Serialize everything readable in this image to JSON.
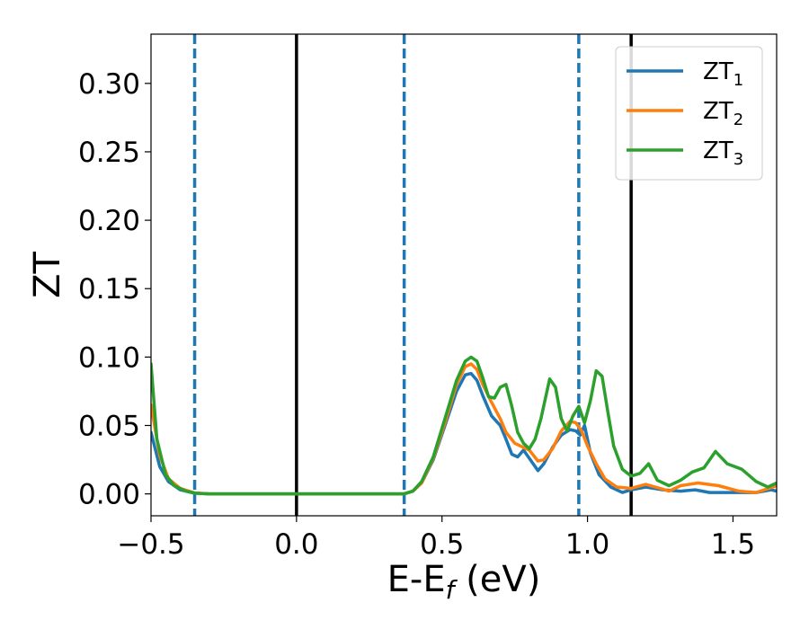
{
  "chart_data": {
    "type": "line",
    "title": "",
    "xlabel": "E-E",
    "xlabel_sub": "f",
    "xlabel_unit": " (eV)",
    "ylabel": "ZT",
    "xlim": [
      -0.5,
      1.65
    ],
    "ylim": [
      -0.016,
      0.336
    ],
    "xticks": [
      -0.5,
      0.0,
      0.5,
      1.0,
      1.5
    ],
    "xtick_labels": [
      "−0.5",
      "0.0",
      "0.5",
      "1.0",
      "1.5"
    ],
    "yticks": [
      0.0,
      0.05,
      0.1,
      0.15,
      0.2,
      0.25,
      0.3
    ],
    "ytick_labels": [
      "0.00",
      "0.05",
      "0.10",
      "0.15",
      "0.20",
      "0.25",
      "0.30"
    ],
    "grid": false,
    "legend_position": "top-right",
    "vlines": [
      {
        "x": -0.35,
        "style": "dashed",
        "color": "#1f77b4"
      },
      {
        "x": 0.0,
        "style": "solid",
        "color": "#000000"
      },
      {
        "x": 0.37,
        "style": "dashed",
        "color": "#1f77b4"
      },
      {
        "x": 0.97,
        "style": "dashed",
        "color": "#1f77b4"
      },
      {
        "x": 1.15,
        "style": "solid",
        "color": "#000000"
      }
    ],
    "series": [
      {
        "name": "ZT",
        "sub": "1",
        "color": "#1f77b4",
        "points": [
          [
            -0.5,
            0.045
          ],
          [
            -0.47,
            0.02
          ],
          [
            -0.44,
            0.009
          ],
          [
            -0.4,
            0.003
          ],
          [
            -0.35,
            0.0005
          ],
          [
            -0.3,
            0.0
          ],
          [
            0.0,
            0.0
          ],
          [
            0.3,
            0.0
          ],
          [
            0.37,
            0.0
          ],
          [
            0.4,
            0.002
          ],
          [
            0.43,
            0.008
          ],
          [
            0.47,
            0.025
          ],
          [
            0.51,
            0.05
          ],
          [
            0.55,
            0.075
          ],
          [
            0.58,
            0.087
          ],
          [
            0.6,
            0.088
          ],
          [
            0.62,
            0.083
          ],
          [
            0.64,
            0.072
          ],
          [
            0.67,
            0.057
          ],
          [
            0.7,
            0.05
          ],
          [
            0.72,
            0.04
          ],
          [
            0.74,
            0.029
          ],
          [
            0.76,
            0.027
          ],
          [
            0.78,
            0.032
          ],
          [
            0.8,
            0.026
          ],
          [
            0.83,
            0.017
          ],
          [
            0.85,
            0.022
          ],
          [
            0.88,
            0.034
          ],
          [
            0.91,
            0.043
          ],
          [
            0.94,
            0.047
          ],
          [
            0.96,
            0.046
          ],
          [
            0.975,
            0.043
          ],
          [
            0.99,
            0.05
          ],
          [
            1.01,
            0.03
          ],
          [
            1.04,
            0.014
          ],
          [
            1.08,
            0.005
          ],
          [
            1.12,
            0.001
          ],
          [
            1.15,
            0.003
          ],
          [
            1.2,
            0.005
          ],
          [
            1.26,
            0.003
          ],
          [
            1.32,
            0.002
          ],
          [
            1.37,
            0.003
          ],
          [
            1.42,
            0.001
          ],
          [
            1.5,
            0.001
          ],
          [
            1.58,
            0.001
          ],
          [
            1.63,
            0.003
          ],
          [
            1.65,
            0.002
          ]
        ]
      },
      {
        "name": "ZT",
        "sub": "2",
        "color": "#ff7f0e",
        "points": [
          [
            -0.5,
            0.065
          ],
          [
            -0.47,
            0.028
          ],
          [
            -0.44,
            0.011
          ],
          [
            -0.4,
            0.004
          ],
          [
            -0.35,
            0.0007
          ],
          [
            -0.3,
            0.0
          ],
          [
            0.0,
            0.0
          ],
          [
            0.3,
            0.0
          ],
          [
            0.37,
            0.0
          ],
          [
            0.4,
            0.002
          ],
          [
            0.43,
            0.008
          ],
          [
            0.47,
            0.026
          ],
          [
            0.51,
            0.052
          ],
          [
            0.55,
            0.08
          ],
          [
            0.58,
            0.093
          ],
          [
            0.6,
            0.095
          ],
          [
            0.62,
            0.091
          ],
          [
            0.64,
            0.08
          ],
          [
            0.67,
            0.067
          ],
          [
            0.7,
            0.055
          ],
          [
            0.72,
            0.045
          ],
          [
            0.75,
            0.037
          ],
          [
            0.78,
            0.034
          ],
          [
            0.8,
            0.032
          ],
          [
            0.83,
            0.024
          ],
          [
            0.85,
            0.025
          ],
          [
            0.88,
            0.033
          ],
          [
            0.91,
            0.046
          ],
          [
            0.94,
            0.053
          ],
          [
            0.96,
            0.052
          ],
          [
            0.98,
            0.046
          ],
          [
            1.0,
            0.035
          ],
          [
            1.03,
            0.022
          ],
          [
            1.06,
            0.011
          ],
          [
            1.1,
            0.005
          ],
          [
            1.15,
            0.004
          ],
          [
            1.2,
            0.007
          ],
          [
            1.25,
            0.004
          ],
          [
            1.28,
            0.002
          ],
          [
            1.32,
            0.006
          ],
          [
            1.38,
            0.008
          ],
          [
            1.45,
            0.006
          ],
          [
            1.52,
            0.002
          ],
          [
            1.58,
            0.001
          ],
          [
            1.65,
            0.006
          ]
        ]
      },
      {
        "name": "ZT",
        "sub": "3",
        "color": "#2ca02c",
        "points": [
          [
            -0.5,
            0.095
          ],
          [
            -0.48,
            0.04
          ],
          [
            -0.45,
            0.014
          ],
          [
            -0.42,
            0.006
          ],
          [
            -0.38,
            0.002
          ],
          [
            -0.35,
            0.0006
          ],
          [
            -0.3,
            0.0
          ],
          [
            0.0,
            0.0
          ],
          [
            0.3,
            0.0
          ],
          [
            0.37,
            0.0
          ],
          [
            0.4,
            0.002
          ],
          [
            0.43,
            0.009
          ],
          [
            0.47,
            0.027
          ],
          [
            0.51,
            0.055
          ],
          [
            0.55,
            0.083
          ],
          [
            0.58,
            0.097
          ],
          [
            0.6,
            0.1
          ],
          [
            0.62,
            0.097
          ],
          [
            0.64,
            0.085
          ],
          [
            0.66,
            0.071
          ],
          [
            0.68,
            0.07
          ],
          [
            0.7,
            0.078
          ],
          [
            0.72,
            0.08
          ],
          [
            0.74,
            0.064
          ],
          [
            0.76,
            0.045
          ],
          [
            0.78,
            0.037
          ],
          [
            0.8,
            0.033
          ],
          [
            0.82,
            0.04
          ],
          [
            0.84,
            0.055
          ],
          [
            0.87,
            0.084
          ],
          [
            0.89,
            0.078
          ],
          [
            0.91,
            0.055
          ],
          [
            0.93,
            0.046
          ],
          [
            0.95,
            0.057
          ],
          [
            0.97,
            0.064
          ],
          [
            0.99,
            0.052
          ],
          [
            1.01,
            0.068
          ],
          [
            1.03,
            0.09
          ],
          [
            1.05,
            0.086
          ],
          [
            1.07,
            0.06
          ],
          [
            1.09,
            0.035
          ],
          [
            1.12,
            0.018
          ],
          [
            1.15,
            0.013
          ],
          [
            1.18,
            0.015
          ],
          [
            1.21,
            0.022
          ],
          [
            1.24,
            0.01
          ],
          [
            1.28,
            0.006
          ],
          [
            1.32,
            0.01
          ],
          [
            1.36,
            0.016
          ],
          [
            1.4,
            0.019
          ],
          [
            1.44,
            0.031
          ],
          [
            1.48,
            0.022
          ],
          [
            1.53,
            0.018
          ],
          [
            1.58,
            0.009
          ],
          [
            1.62,
            0.005
          ],
          [
            1.65,
            0.008
          ]
        ]
      }
    ]
  }
}
